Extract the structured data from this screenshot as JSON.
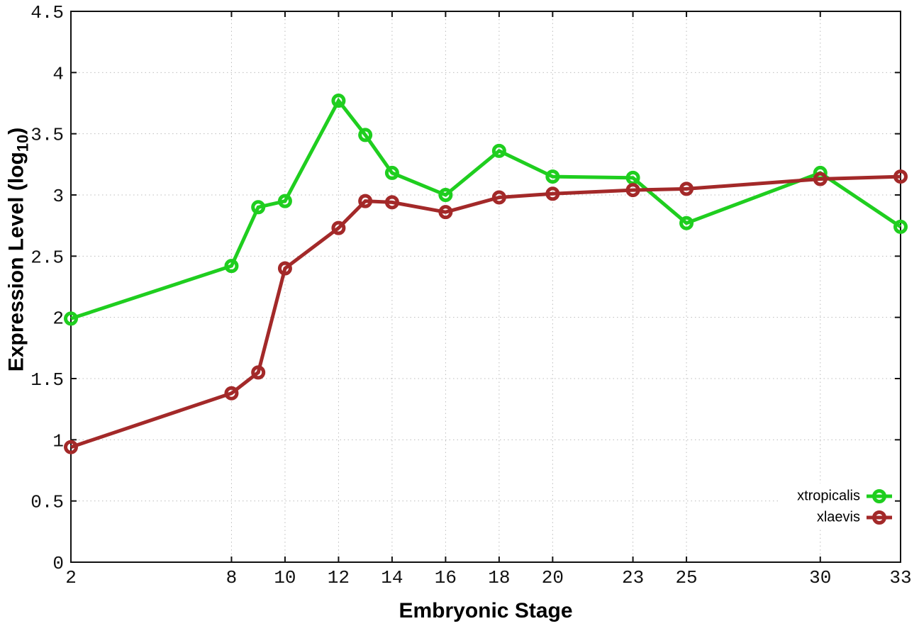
{
  "chart_data": {
    "type": "line",
    "title": "",
    "xlabel": "Embryonic Stage",
    "ylabel": {
      "prefix": "Expression Level (log",
      "sub": "10",
      "suffix": ")"
    },
    "xlim": [
      2,
      33
    ],
    "ylim": [
      0,
      4.5
    ],
    "xticks": [
      2,
      8,
      10,
      12,
      14,
      16,
      18,
      20,
      23,
      25,
      30,
      33
    ],
    "yticks": [
      0,
      0.5,
      1,
      1.5,
      2,
      2.5,
      3,
      3.5,
      4,
      4.5
    ],
    "grid": true,
    "legend_position": "inside-bottom-right",
    "colors": {
      "grid": "#bcbcbc",
      "axis": "#111111",
      "background": "#ffffff"
    },
    "series": [
      {
        "name": "xtropicalis",
        "color": "#1fce1f",
        "marker": "open-circle",
        "points": [
          [
            2,
            1.99
          ],
          [
            8,
            2.42
          ],
          [
            9,
            2.9
          ],
          [
            10,
            2.95
          ],
          [
            12,
            3.77
          ],
          [
            13,
            3.49
          ],
          [
            14,
            3.18
          ],
          [
            16,
            3.0
          ],
          [
            18,
            3.36
          ],
          [
            20,
            3.15
          ],
          [
            23,
            3.14
          ],
          [
            25,
            2.77
          ],
          [
            30,
            3.18
          ],
          [
            33,
            2.74
          ]
        ]
      },
      {
        "name": "xlaevis",
        "color": "#a32929",
        "marker": "open-circle",
        "points": [
          [
            2,
            0.94
          ],
          [
            8,
            1.38
          ],
          [
            9,
            1.55
          ],
          [
            10,
            2.4
          ],
          [
            12,
            2.73
          ],
          [
            13,
            2.95
          ],
          [
            14,
            2.94
          ],
          [
            16,
            2.86
          ],
          [
            18,
            2.98
          ],
          [
            20,
            3.01
          ],
          [
            23,
            3.04
          ],
          [
            25,
            3.05
          ],
          [
            30,
            3.13
          ],
          [
            33,
            3.15
          ]
        ]
      }
    ]
  }
}
